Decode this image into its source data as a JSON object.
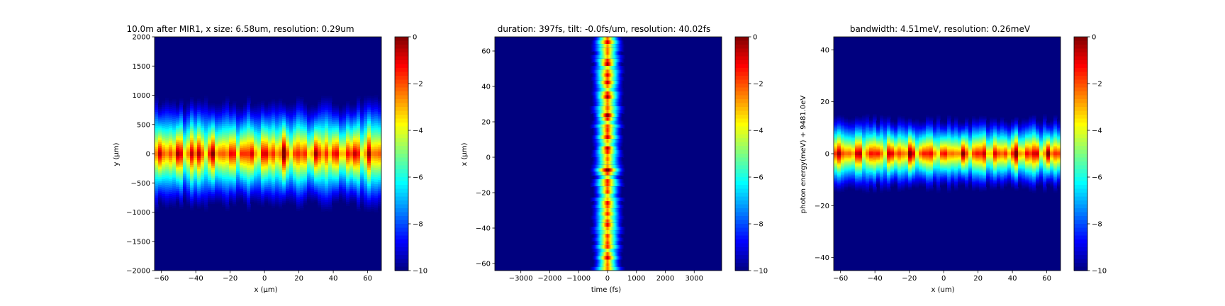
{
  "colors": {
    "jet": [
      "#00007f",
      "#0000ff",
      "#007fff",
      "#00ffff",
      "#7fff7f",
      "#ffff00",
      "#ff7f00",
      "#ff0000",
      "#7f0000"
    ],
    "background_value": "#00007f",
    "axis": "#000000"
  },
  "chart_data": [
    {
      "type": "heatmap",
      "title": "10.0m after MIR1, x size: 6.58um, resolution: 0.29um",
      "xlabel": "x (μm)",
      "ylabel": "y (μm)",
      "xlim": [
        -64,
        68
      ],
      "ylim": [
        -2000,
        2000
      ],
      "x_ticks": [
        -60,
        -40,
        -20,
        0,
        20,
        40,
        60
      ],
      "y_ticks": [
        -2000,
        -1500,
        -1000,
        -500,
        0,
        500,
        1000,
        1500,
        2000
      ],
      "x_tick_labels": [
        "−60",
        "−40",
        "−20",
        "0",
        "20",
        "40",
        "60"
      ],
      "y_tick_labels": [
        "−2000",
        "−1500",
        "−1000",
        "−500",
        "0",
        "500",
        "1000",
        "1500",
        "2000"
      ],
      "band": {
        "axis": "y",
        "center": 0,
        "half_width": 1050,
        "modulation": "x",
        "stripe_period": 2.3
      },
      "colorbar": {
        "range": [
          -10,
          0
        ],
        "ticks": [
          0,
          -2,
          -4,
          -6,
          -8,
          -10
        ],
        "tick_labels": [
          "0",
          "−2",
          "−4",
          "−6",
          "−8",
          "−10"
        ]
      }
    },
    {
      "type": "heatmap",
      "title": "duration: 397fs, tilt: -0.0fs/um, resolution: 40.02fs",
      "xlabel": "time (fs)",
      "ylabel": "x (μm)",
      "xlim": [
        -3900,
        3950
      ],
      "ylim": [
        -64,
        68
      ],
      "x_ticks": [
        -3000,
        -2000,
        -1000,
        0,
        1000,
        2000,
        3000
      ],
      "y_ticks": [
        -60,
        -40,
        -20,
        0,
        20,
        40,
        60
      ],
      "x_tick_labels": [
        "−3000",
        "−2000",
        "−1000",
        "0",
        "1000",
        "2000",
        "3000"
      ],
      "y_tick_labels": [
        "−60",
        "−40",
        "−20",
        "0",
        "20",
        "40",
        "60"
      ],
      "band": {
        "axis": "x",
        "center": 0,
        "half_width": 650,
        "modulation": "y",
        "stripe_period": 3.6
      },
      "colorbar": {
        "range": [
          -10,
          0
        ],
        "ticks": [
          0,
          -2,
          -4,
          -6,
          -8,
          -10
        ],
        "tick_labels": [
          "0",
          "−2",
          "−4",
          "−6",
          "−8",
          "−10"
        ]
      }
    },
    {
      "type": "heatmap",
      "title": "bandwidth: 4.51meV, resolution: 0.26meV",
      "xlabel": "x (um)",
      "ylabel": "photon energy(meV) + 9481.0eV",
      "xlim": [
        -64,
        68
      ],
      "ylim": [
        -45,
        45
      ],
      "x_ticks": [
        -60,
        -40,
        -20,
        0,
        20,
        40,
        60
      ],
      "y_ticks": [
        -40,
        -20,
        0,
        20,
        40
      ],
      "x_tick_labels": [
        "−60",
        "−40",
        "−20",
        "0",
        "20",
        "40",
        "60"
      ],
      "y_tick_labels": [
        "−40",
        "−20",
        "0",
        "20",
        "40"
      ],
      "band": {
        "axis": "y",
        "center": 0,
        "half_width": 16,
        "modulation": "x",
        "stripe_period": 2.6
      },
      "colorbar": {
        "range": [
          -10,
          0
        ],
        "ticks": [
          0,
          -2,
          -4,
          -6,
          -8,
          -10
        ],
        "tick_labels": [
          "0",
          "−2",
          "−4",
          "−6",
          "−8",
          "−10"
        ]
      }
    }
  ]
}
